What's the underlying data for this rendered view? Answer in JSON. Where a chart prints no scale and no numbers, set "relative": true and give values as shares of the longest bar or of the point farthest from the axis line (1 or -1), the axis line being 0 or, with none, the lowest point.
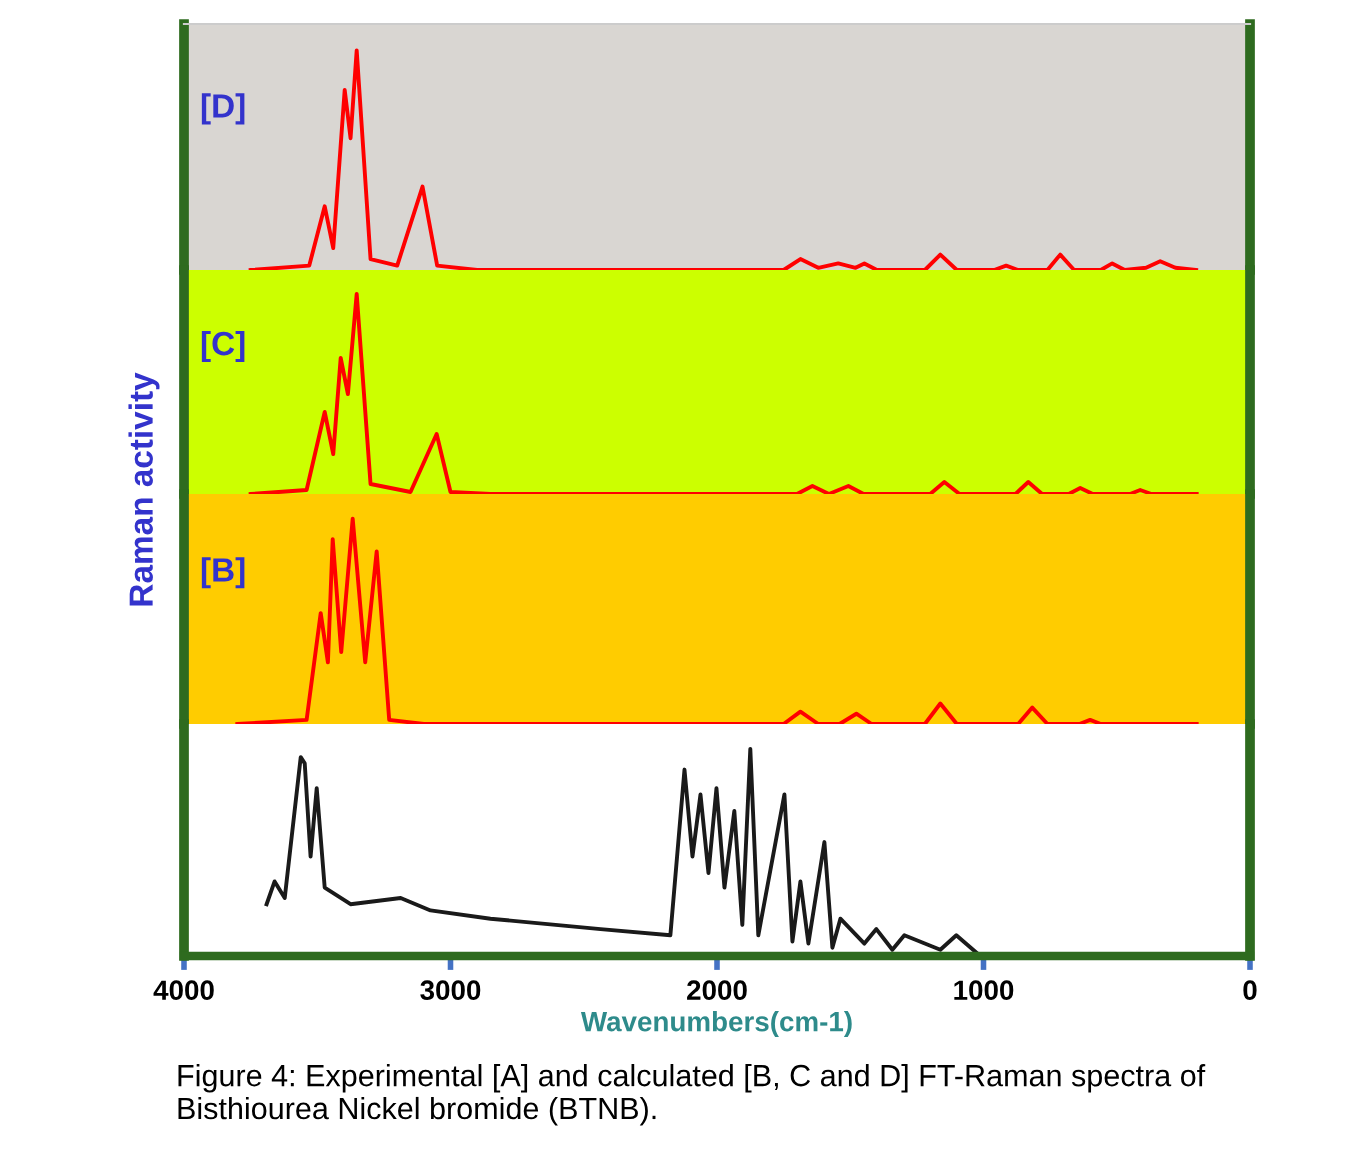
{
  "chart_data": [
    {
      "type": "line",
      "relative": true,
      "xlim": [
        4000,
        0
      ],
      "tick_labels": false,
      "annotations": [
        "[D]"
      ],
      "series": [
        {
          "color": "#ff0000",
          "x": [
            3750,
            3530,
            3472,
            3440,
            3397,
            3375,
            3352,
            3300,
            3200,
            3105,
            3050,
            2900,
            1750,
            1687,
            1620,
            1545,
            1480,
            1447,
            1400,
            1220,
            1162,
            1100,
            960,
            915,
            870,
            760,
            712,
            660,
            560,
            517,
            470,
            390,
            337,
            280,
            202
          ],
          "values": [
            0,
            0.02,
            0.29,
            0.1,
            0.82,
            0.6,
            1.0,
            0.05,
            0.02,
            0.38,
            0.02,
            0,
            0,
            0.05,
            0.01,
            0.03,
            0.01,
            0.03,
            0,
            0,
            0.07,
            0,
            0,
            0.02,
            0,
            0,
            0.07,
            0,
            0,
            0.03,
            0,
            0.01,
            0.04,
            0.01,
            0
          ]
        }
      ]
    },
    {
      "type": "line",
      "relative": true,
      "xlim": [
        4000,
        0
      ],
      "tick_labels": false,
      "annotations": [
        "[C]"
      ],
      "ylabel": "Raman activity",
      "series": [
        {
          "color": "#ff0000",
          "x": [
            3750,
            3540,
            3472,
            3440,
            3412,
            3385,
            3352,
            3300,
            3150,
            3052,
            3000,
            2850,
            1700,
            1642,
            1580,
            1507,
            1450,
            1200,
            1147,
            1090,
            880,
            832,
            780,
            680,
            637,
            590,
            450,
            412,
            370,
            200
          ],
          "values": [
            0,
            0.02,
            0.41,
            0.2,
            0.68,
            0.5,
            1.0,
            0.05,
            0.01,
            0.3,
            0.01,
            0,
            0,
            0.04,
            0,
            0.04,
            0,
            0,
            0.06,
            0,
            0,
            0.06,
            0,
            0,
            0.03,
            0,
            0,
            0.02,
            0,
            0
          ]
        }
      ]
    },
    {
      "type": "line",
      "relative": true,
      "xlim": [
        4000,
        0
      ],
      "tick_labels": false,
      "annotations": [
        "[B]"
      ],
      "series": [
        {
          "color": "#ff0000",
          "x": [
            3800,
            3540,
            3487,
            3460,
            3442,
            3410,
            3367,
            3320,
            3277,
            3230,
            3100,
            1750,
            1687,
            1620,
            1540,
            1477,
            1420,
            1220,
            1162,
            1100,
            870,
            817,
            760,
            640,
            600,
            560,
            200
          ],
          "values": [
            0,
            0.02,
            0.54,
            0.3,
            0.9,
            0.35,
            1.0,
            0.3,
            0.84,
            0.02,
            0,
            0,
            0.06,
            0,
            0,
            0.05,
            0,
            0,
            0.1,
            0,
            0,
            0.08,
            0,
            0,
            0.02,
            0,
            0
          ]
        }
      ]
    },
    {
      "type": "line",
      "relative": true,
      "xlim": [
        4000,
        0
      ],
      "xticks": [
        4000,
        3000,
        2000,
        1000,
        0
      ],
      "tick_labels": "x",
      "xlabel": "Wavenumbers(cm-1)",
      "annotations": [
        "Figure 4: Experimental [A] and calculated [B, C and D] FT-Raman spectra of Bisthiourea Nickel bromide (BTNB)."
      ],
      "series": [
        {
          "color": "#1a1a1a",
          "x": [
            3690,
            3660,
            3622,
            3562,
            3547,
            3525,
            3502,
            3472,
            3375,
            3187,
            3075,
            2850,
            2437,
            2175,
            2122,
            2092,
            2062,
            2032,
            2002,
            1972,
            1935,
            1905,
            1875,
            1845,
            1747,
            1717,
            1687,
            1657,
            1597,
            1567,
            1537,
            1447,
            1402,
            1342,
            1297,
            1162,
            1102,
            1012,
            787,
            450
          ],
          "values": [
            0.25,
            0.36,
            0.28,
            0.96,
            0.93,
            0.48,
            0.81,
            0.33,
            0.25,
            0.28,
            0.22,
            0.18,
            0.13,
            0.1,
            0.9,
            0.48,
            0.78,
            0.4,
            0.81,
            0.33,
            0.7,
            0.15,
            1.0,
            0.1,
            0.78,
            0.07,
            0.36,
            0.06,
            0.55,
            0.04,
            0.18,
            0.06,
            0.13,
            0.03,
            0.1,
            0.03,
            0.1,
            0,
            0.01,
            0.01
          ]
        }
      ]
    }
  ]
}
